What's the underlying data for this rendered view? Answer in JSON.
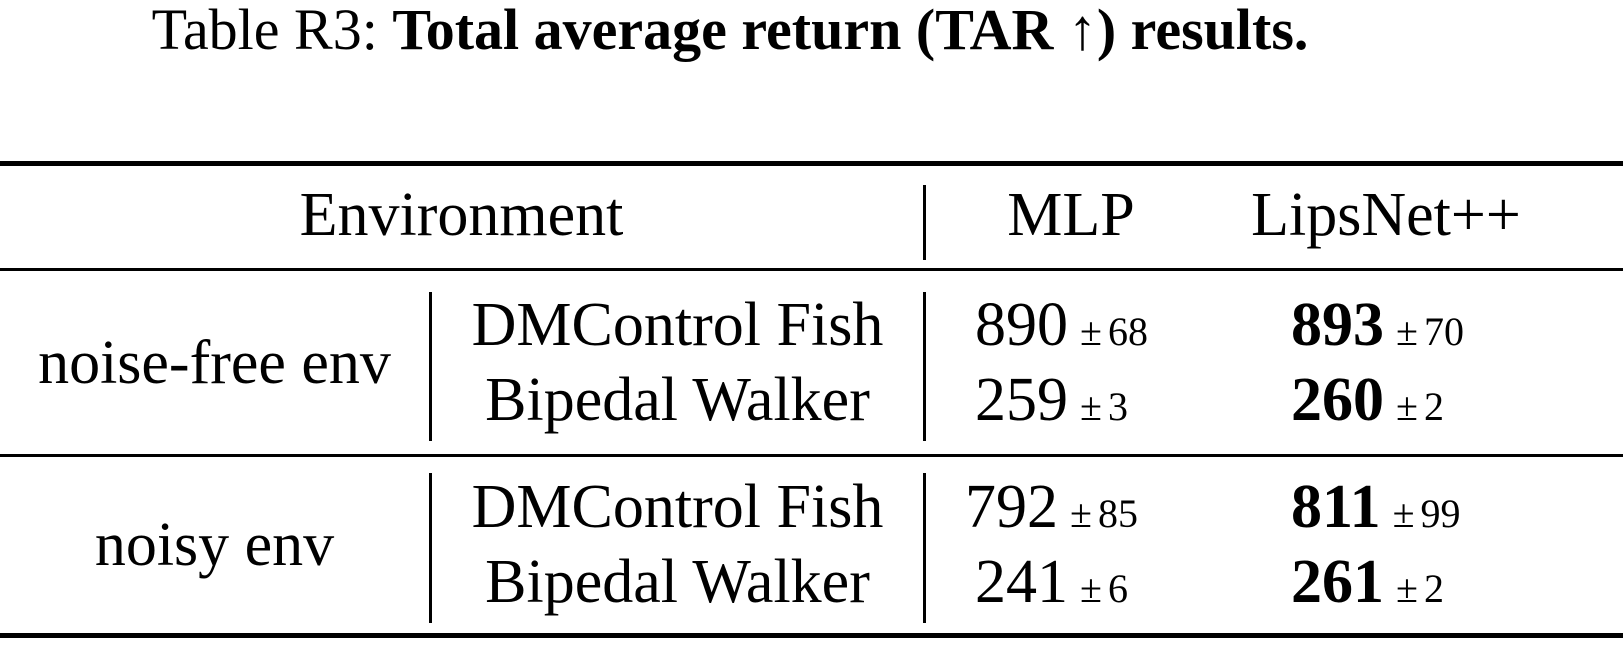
{
  "caption": {
    "label": "Table R3:",
    "text": "Total average return (TAR ↑) results."
  },
  "table": {
    "headers": {
      "environment": "Environment",
      "mlp": "MLP",
      "lipsnet": "LipsNet++"
    },
    "pm_symbol": "±",
    "groups": [
      {
        "name": "noise-free env",
        "rows": [
          {
            "env": "DMControl Fish",
            "mlp_mean": "890",
            "mlp_sd": "68",
            "lips_mean": "893",
            "lips_sd": "70"
          },
          {
            "env": "Bipedal Walker",
            "mlp_mean": "259",
            "mlp_sd": "3",
            "lips_mean": "260",
            "lips_sd": "2"
          }
        ]
      },
      {
        "name": "noisy env",
        "rows": [
          {
            "env": "DMControl Fish",
            "mlp_mean": "792",
            "mlp_sd": "85",
            "lips_mean": "811",
            "lips_sd": "99"
          },
          {
            "env": "Bipedal Walker",
            "mlp_mean": "241",
            "mlp_sd": "6",
            "lips_mean": "261",
            "lips_sd": "2"
          }
        ]
      }
    ]
  }
}
